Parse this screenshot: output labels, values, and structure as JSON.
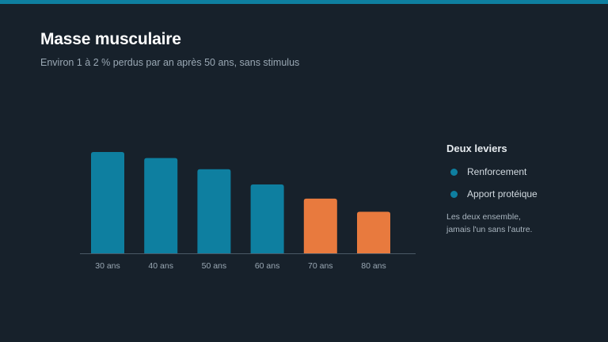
{
  "slide": {
    "title": "Masse musculaire",
    "subtitle": "Environ 1 à 2 % perdus par an après 50 ans, sans stimulus",
    "accent_color": "#0e7fa0"
  },
  "legend": {
    "title": "Deux leviers",
    "items": [
      {
        "label": "Renforcement",
        "color": "#0e7fa0"
      },
      {
        "label": "Apport protéique",
        "color": "#0e7fa0"
      }
    ],
    "note_line1": "Les deux ensemble,",
    "note_line2": "jamais l'un sans l'autre."
  },
  "chart_data": {
    "type": "bar",
    "title": "",
    "xlabel": "",
    "ylabel": "",
    "categories": [
      "30 ans",
      "40 ans",
      "50 ans",
      "60 ans",
      "70 ans",
      "80 ans"
    ],
    "values": [
      100,
      94,
      83,
      68,
      54,
      41
    ],
    "colors": [
      "#0e7fa0",
      "#0e7fa0",
      "#0e7fa0",
      "#0e7fa0",
      "#e87a3e",
      "#e87a3e"
    ],
    "ylim": [
      0,
      100
    ],
    "grid": false,
    "legend_position": "right"
  }
}
